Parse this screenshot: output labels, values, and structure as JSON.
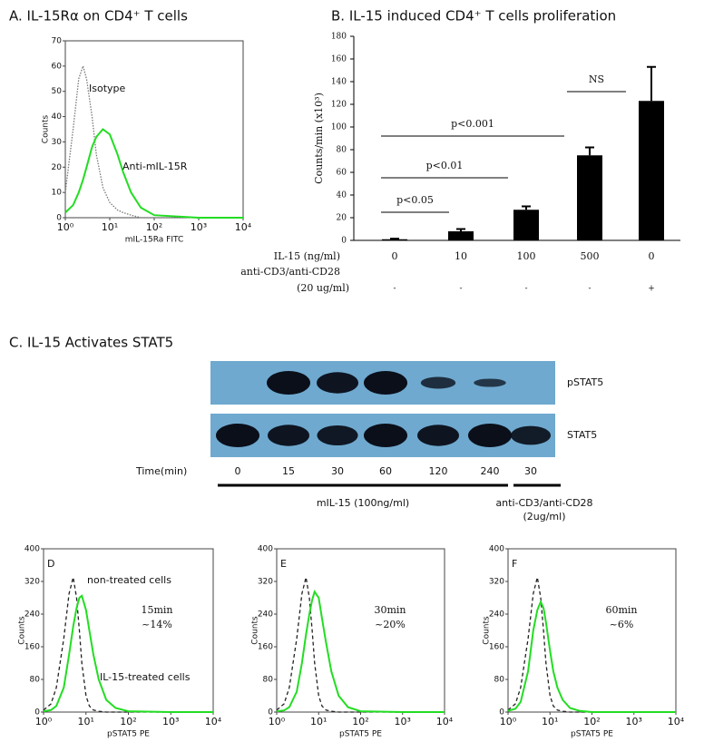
{
  "chart_data": [
    {
      "type": "line",
      "title": "A. IL-15Rα  on CD4⁺ T cells",
      "xscale": "log",
      "xlabel": "mIL-15Ra FITC",
      "ylabel": "Counts",
      "x": [
        1,
        1.5,
        2,
        2.5,
        3,
        4,
        5,
        7,
        10,
        15,
        20,
        30,
        50,
        100,
        1000,
        10000
      ],
      "series": [
        {
          "name": "Isotype",
          "color": "#777777",
          "style": "dotted",
          "values": [
            10,
            35,
            55,
            60,
            55,
            40,
            25,
            12,
            6,
            3,
            2,
            1,
            0,
            0,
            0,
            0
          ]
        },
        {
          "name": "Anti-mIL-15R",
          "color": "#22dd22",
          "style": "solid",
          "values": [
            2,
            5,
            10,
            15,
            20,
            28,
            32,
            35,
            33,
            25,
            18,
            10,
            4,
            1,
            0,
            0
          ]
        }
      ],
      "xlim": [
        1,
        10000
      ],
      "ylim": [
        0,
        70
      ],
      "xticks": [
        {
          "value": 1,
          "label": "10⁰"
        },
        {
          "value": 10,
          "label": "10¹"
        },
        {
          "value": 100,
          "label": "10²"
        },
        {
          "value": 1000,
          "label": "10³"
        },
        {
          "value": 10000,
          "label": "10⁴"
        }
      ],
      "yticks": [
        0,
        10,
        20,
        30,
        40,
        50,
        60,
        70
      ]
    },
    {
      "type": "bar",
      "title": "B. IL-15 induced CD4⁺ T cells proliferation",
      "ylabel": "Counts/min (x10³)",
      "categories": [
        "0",
        "10",
        "100",
        "500",
        "0"
      ],
      "second_row": [
        "-",
        "-",
        "-",
        "-",
        "+"
      ],
      "row_labels": [
        "IL-15 (ng/ml)",
        "anti-CD3/anti-CD28",
        "(20 ug/ml)"
      ],
      "values": [
        1,
        8,
        27,
        75,
        123
      ],
      "errors": [
        0.5,
        2,
        3,
        7,
        30
      ],
      "color": "#000000",
      "ylim": [
        0,
        180
      ],
      "yticks": [
        0,
        20,
        40,
        60,
        80,
        100,
        120,
        140,
        160,
        180
      ],
      "annotations": [
        "p<0.05",
        "p<0.01",
        "p<0.001",
        "NS"
      ]
    },
    {
      "type": "line",
      "title": "D",
      "xscale": "log",
      "xlabel": "pSTAT5 PE",
      "ylabel": "Counts",
      "x": [
        1,
        1.5,
        2,
        3,
        4,
        5,
        6,
        7,
        8,
        10,
        12,
        15,
        20,
        30,
        50,
        100,
        1000,
        10000
      ],
      "series": [
        {
          "name": "non-treated cells",
          "color": "#222222",
          "style": "dashed",
          "values": [
            5,
            20,
            60,
            180,
            290,
            330,
            280,
            200,
            120,
            40,
            15,
            5,
            2,
            0,
            0,
            0,
            0,
            0
          ]
        },
        {
          "name": "IL-15-treated cells",
          "color": "#22dd22",
          "style": "solid",
          "values": [
            2,
            5,
            15,
            60,
            140,
            210,
            255,
            280,
            285,
            250,
            200,
            140,
            80,
            30,
            10,
            2,
            0,
            0
          ]
        }
      ],
      "annotations": [
        "15min",
        "~14%"
      ],
      "xlim": [
        1,
        10000
      ],
      "ylim": [
        0,
        400
      ],
      "xticks": [
        {
          "value": 1,
          "label": "10⁰"
        },
        {
          "value": 10,
          "label": "10¹"
        },
        {
          "value": 100,
          "label": "10²"
        },
        {
          "value": 1000,
          "label": "10³"
        },
        {
          "value": 10000,
          "label": "10⁴"
        }
      ],
      "yticks": [
        0,
        80,
        160,
        240,
        320,
        400
      ]
    },
    {
      "type": "line",
      "title": "E",
      "xscale": "log",
      "xlabel": "pSTAT5 PE",
      "ylabel": "Counts",
      "x": [
        1,
        1.5,
        2,
        3,
        4,
        5,
        6,
        7,
        8,
        10,
        12,
        15,
        20,
        30,
        50,
        100,
        1000,
        10000
      ],
      "series": [
        {
          "color": "#222222",
          "style": "dashed",
          "values": [
            5,
            20,
            60,
            180,
            290,
            330,
            280,
            200,
            120,
            40,
            15,
            5,
            2,
            0,
            0,
            0,
            0,
            0
          ]
        },
        {
          "color": "#22dd22",
          "style": "solid",
          "values": [
            2,
            4,
            12,
            50,
            120,
            190,
            240,
            275,
            295,
            280,
            230,
            170,
            100,
            40,
            12,
            2,
            0,
            0
          ]
        }
      ],
      "annotations": [
        "30min",
        "~20%"
      ],
      "xlim": [
        1,
        10000
      ],
      "ylim": [
        0,
        400
      ],
      "xticks": [
        {
          "value": 1,
          "label": "10⁰"
        },
        {
          "value": 10,
          "label": "10¹"
        },
        {
          "value": 100,
          "label": "10²"
        },
        {
          "value": 1000,
          "label": "10³"
        },
        {
          "value": 10000,
          "label": "10⁴"
        }
      ],
      "yticks": [
        0,
        80,
        160,
        240,
        320,
        400
      ]
    },
    {
      "type": "line",
      "title": "F",
      "xscale": "log",
      "xlabel": "pSTAT5 PE",
      "ylabel": "Counts",
      "x": [
        1,
        1.5,
        2,
        3,
        4,
        5,
        6,
        7,
        8,
        10,
        12,
        15,
        20,
        30,
        50,
        100,
        1000,
        10000
      ],
      "series": [
        {
          "color": "#222222",
          "style": "dashed",
          "values": [
            5,
            20,
            60,
            180,
            290,
            330,
            280,
            200,
            120,
            40,
            15,
            5,
            2,
            0,
            0,
            0,
            0,
            0
          ]
        },
        {
          "color": "#22dd22",
          "style": "solid",
          "values": [
            3,
            8,
            25,
            100,
            200,
            250,
            270,
            255,
            220,
            150,
            100,
            60,
            30,
            10,
            3,
            0,
            0,
            0
          ]
        }
      ],
      "annotations": [
        "60min",
        "~6%"
      ],
      "xlim": [
        1,
        10000
      ],
      "ylim": [
        0,
        400
      ],
      "xticks": [
        {
          "value": 1,
          "label": "10⁰"
        },
        {
          "value": 10,
          "label": "10¹"
        },
        {
          "value": 100,
          "label": "10²"
        },
        {
          "value": 1000,
          "label": "10³"
        },
        {
          "value": 10000,
          "label": "10⁴"
        }
      ],
      "yticks": [
        0,
        80,
        160,
        240,
        320,
        400
      ]
    }
  ],
  "blot": {
    "title": "C. IL-15 Activates STAT5",
    "rows": [
      "pSTAT5",
      "STAT5"
    ],
    "time_label": "Time(min)",
    "lanes": [
      "0",
      "15",
      "30",
      "60",
      "120",
      "240",
      "30"
    ],
    "groups": [
      "mIL-15 (100ng/ml)",
      "anti-CD3/anti-CD28",
      "(2ug/ml)"
    ]
  }
}
